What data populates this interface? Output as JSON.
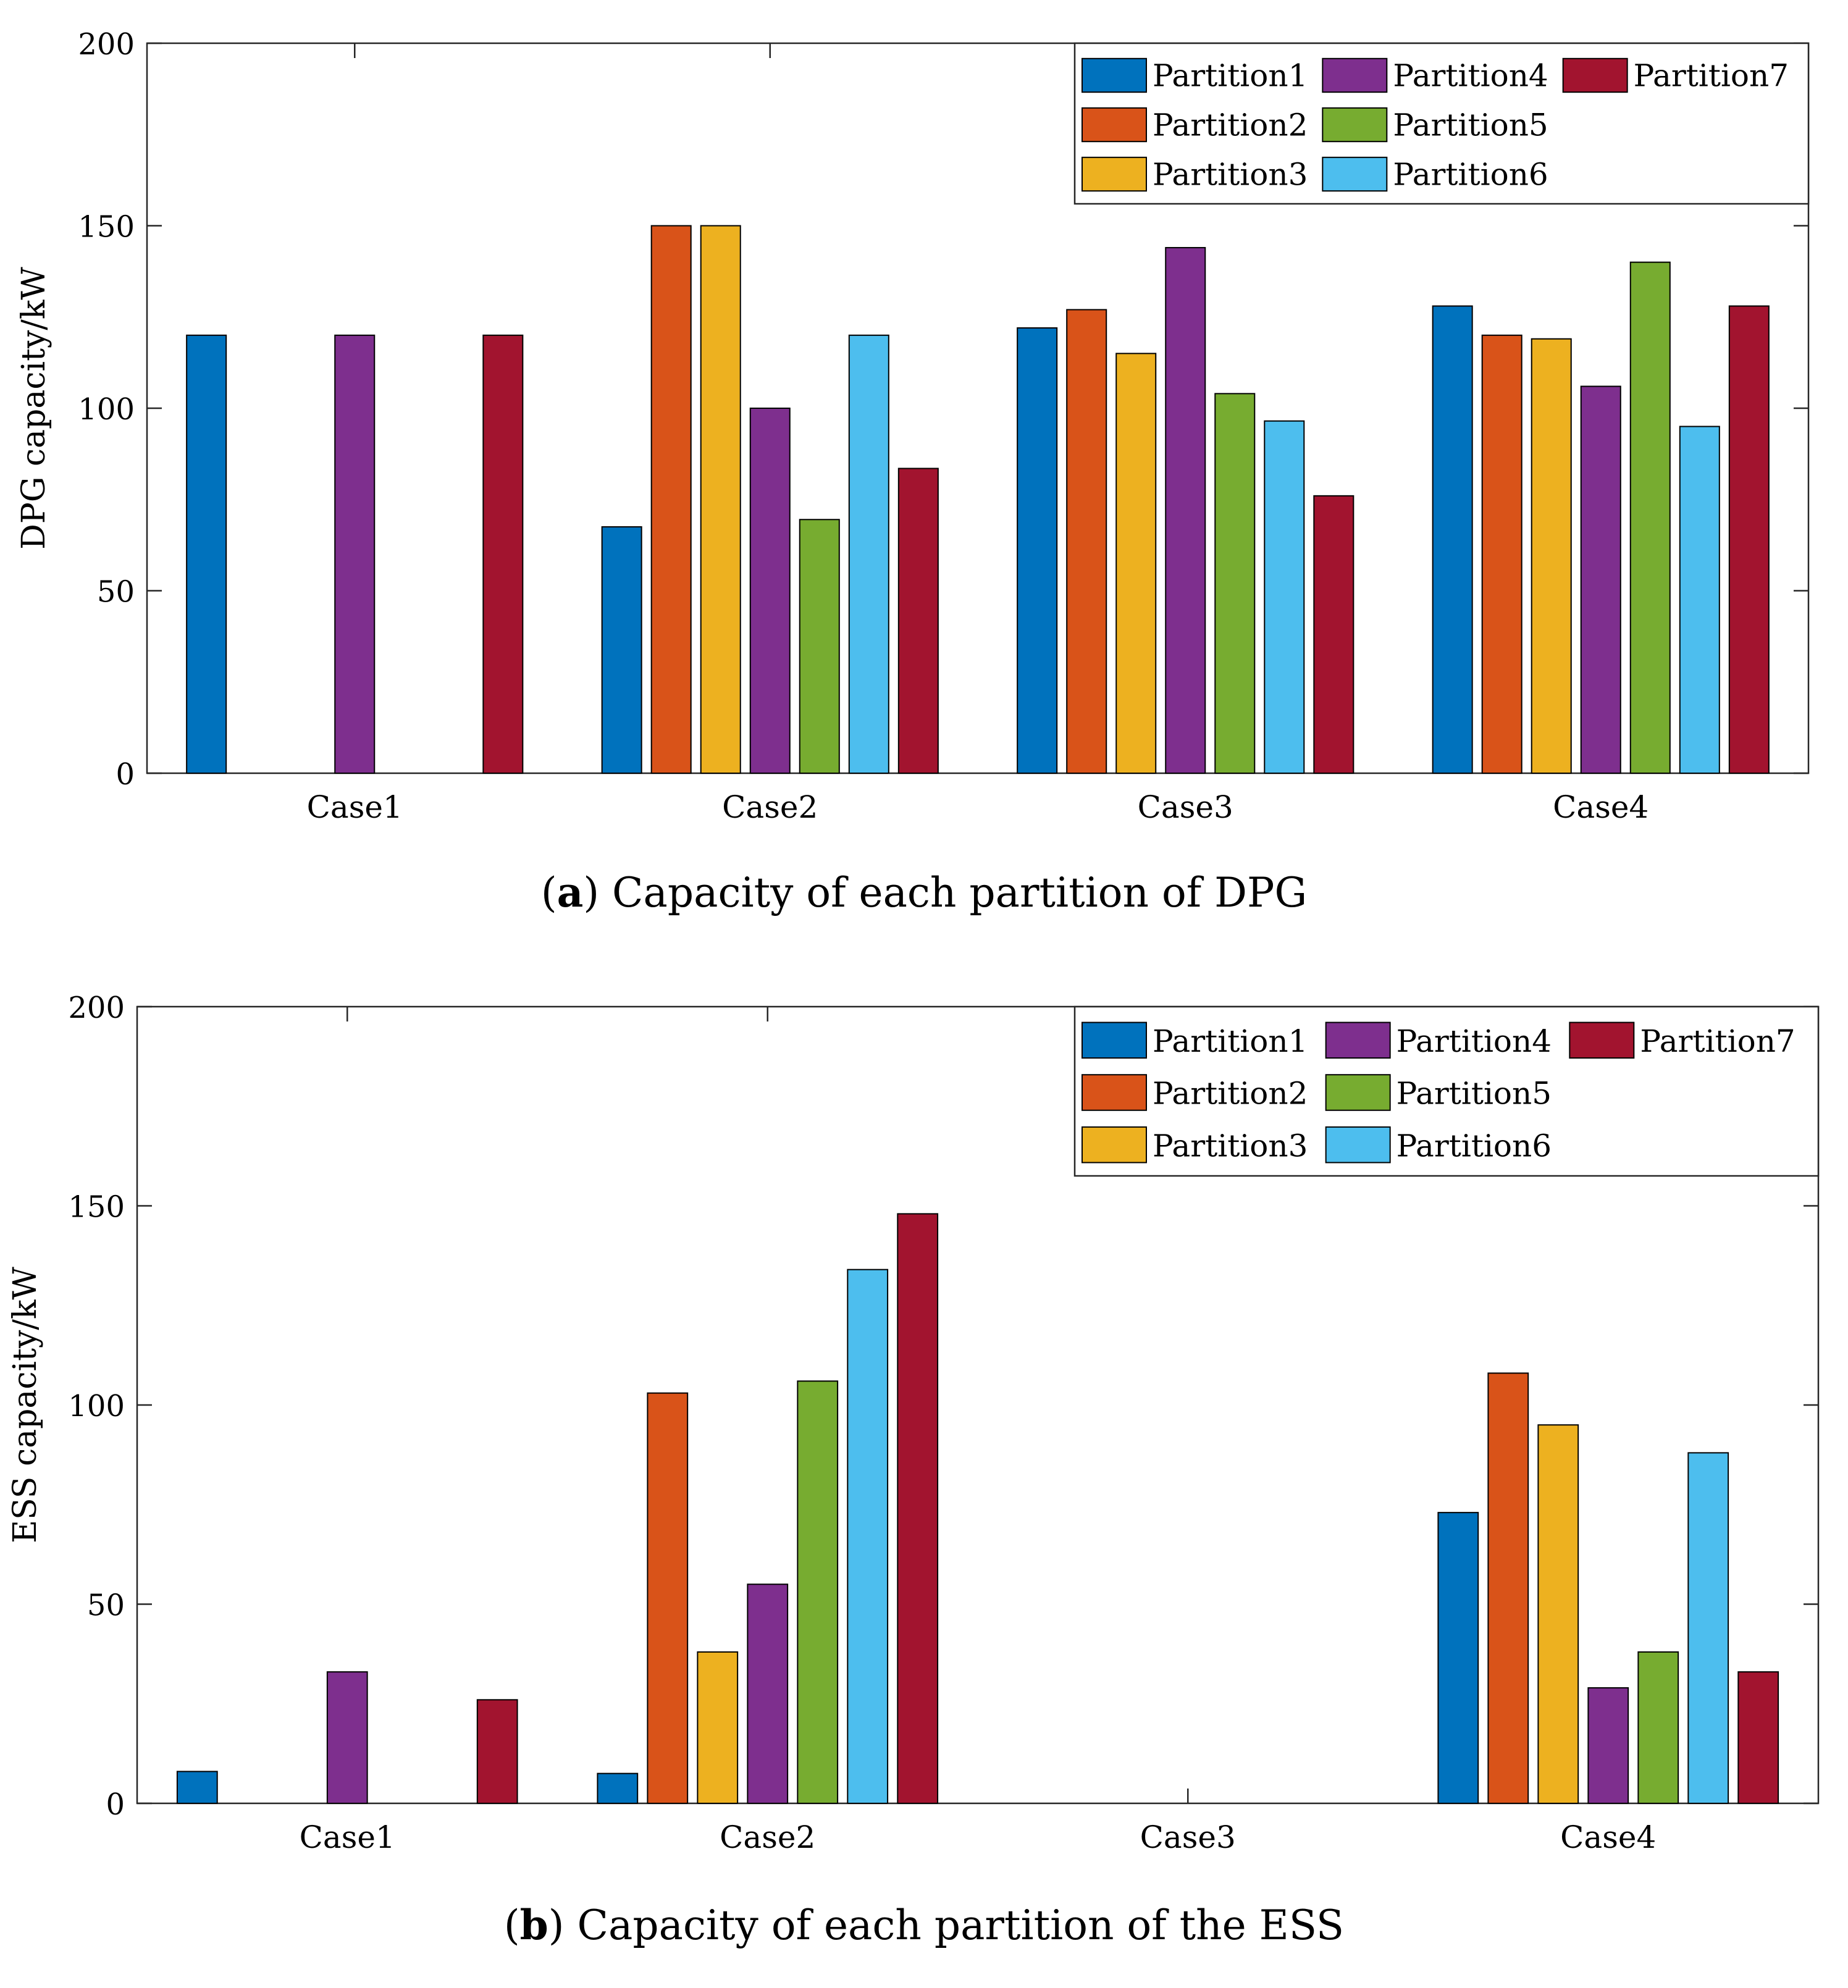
{
  "chart_data": [
    {
      "type": "bar",
      "title": "Capacity of each partition of DPG",
      "caption": {
        "label": "a",
        "text": "Capacity of each partition of DPG"
      },
      "xlabel": "",
      "ylabel": "DPG capacity/kW",
      "ylim": [
        0,
        200
      ],
      "yticks": [
        0,
        50,
        100,
        150,
        200
      ],
      "categories": [
        "Case1",
        "Case2",
        "Case3",
        "Case4"
      ],
      "legend_position": "top-right",
      "series": [
        {
          "name": "Partition1",
          "color": "#0072BD",
          "values": [
            120,
            67.5,
            122,
            128
          ]
        },
        {
          "name": "Partition2",
          "color": "#D95319",
          "values": [
            0,
            150,
            127,
            120
          ]
        },
        {
          "name": "Partition3",
          "color": "#EDB120",
          "values": [
            0,
            150,
            115,
            119
          ]
        },
        {
          "name": "Partition4",
          "color": "#7E2F8E",
          "values": [
            120,
            100,
            144,
            106
          ]
        },
        {
          "name": "Partition5",
          "color": "#77AC30",
          "values": [
            0,
            69.5,
            104,
            140
          ]
        },
        {
          "name": "Partition6",
          "color": "#4DBEEE",
          "values": [
            0,
            120,
            96.5,
            95
          ]
        },
        {
          "name": "Partition7",
          "color": "#A2142F",
          "values": [
            120,
            83.5,
            76,
            128
          ]
        }
      ]
    },
    {
      "type": "bar",
      "title": "Capacity of each partition of the ESS",
      "caption": {
        "label": "b",
        "text": "Capacity of each partition of the ESS"
      },
      "xlabel": "",
      "ylabel": "ESS capacity/kW",
      "ylim": [
        0,
        200
      ],
      "yticks": [
        0,
        50,
        100,
        150,
        200
      ],
      "categories": [
        "Case1",
        "Case2",
        "Case3",
        "Case4"
      ],
      "legend_position": "top-right",
      "series": [
        {
          "name": "Partition1",
          "color": "#0072BD",
          "values": [
            8,
            7.5,
            0,
            73
          ]
        },
        {
          "name": "Partition2",
          "color": "#D95319",
          "values": [
            0,
            103,
            0,
            108
          ]
        },
        {
          "name": "Partition3",
          "color": "#EDB120",
          "values": [
            0,
            38,
            0,
            95
          ]
        },
        {
          "name": "Partition4",
          "color": "#7E2F8E",
          "values": [
            33,
            55,
            0,
            29
          ]
        },
        {
          "name": "Partition5",
          "color": "#77AC30",
          "values": [
            0,
            106,
            0,
            38
          ]
        },
        {
          "name": "Partition6",
          "color": "#4DBEEE",
          "values": [
            0,
            134,
            0,
            88
          ]
        },
        {
          "name": "Partition7",
          "color": "#A2142F",
          "values": [
            26,
            148,
            0,
            33
          ]
        }
      ]
    }
  ]
}
